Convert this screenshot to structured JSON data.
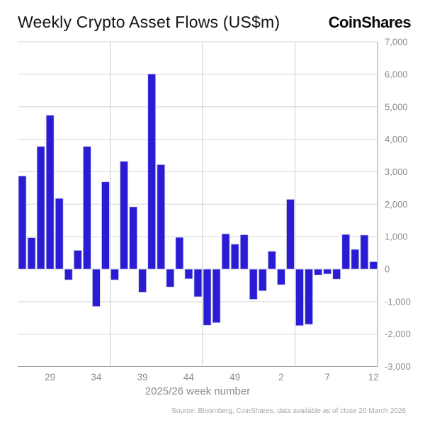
{
  "header": {
    "title": "Weekly Crypto Asset Flows (US$m)",
    "logo": "CoinShares"
  },
  "chart_data": {
    "type": "bar",
    "title": "Weekly Crypto Asset Flows (US$m)",
    "units": "US$m",
    "xlabel": "2025/26 week number",
    "ylabel": "",
    "categories": [
      "26",
      "27",
      "28",
      "29",
      "30",
      "31",
      "32",
      "33",
      "34",
      "35",
      "36",
      "37",
      "38",
      "39",
      "40",
      "41",
      "42",
      "43",
      "44",
      "45",
      "46",
      "47",
      "48",
      "49",
      "50",
      "51",
      "52",
      "1",
      "2",
      "3",
      "4",
      "5",
      "6",
      "7",
      "8",
      "9",
      "10",
      "11",
      "12"
    ],
    "values": [
      2870,
      970,
      3780,
      4740,
      2180,
      -330,
      580,
      3780,
      -1150,
      2690,
      -330,
      3320,
      1920,
      -710,
      6010,
      3220,
      -550,
      980,
      -300,
      -850,
      -1730,
      -1650,
      1090,
      770,
      1060,
      -930,
      -670,
      550,
      -480,
      2150,
      -1740,
      -1700,
      -180,
      -150,
      -310,
      1070,
      610,
      1050,
      230
    ],
    "x_tick_labels": [
      "29",
      "34",
      "39",
      "44",
      "49",
      "2",
      "7",
      "12"
    ],
    "x_tick_indices": [
      3,
      8,
      13,
      18,
      23,
      28,
      33,
      38
    ],
    "y_ticks": [
      -3000,
      -2000,
      -1000,
      0,
      1000,
      2000,
      3000,
      4000,
      5000,
      6000,
      7000
    ],
    "y_tick_labels": [
      "-3,000",
      "-2,000",
      "-1,000",
      "0",
      "1,000",
      "2,000",
      "3,000",
      "4,000",
      "5,000",
      "6,000",
      "7,000"
    ],
    "ylim": [
      -3000,
      7000
    ],
    "grid": true,
    "legend": "none",
    "bar_color": "#2a1bd5",
    "bar_stroke_color": "#d2d2e2",
    "grid_color": "#d6d6d6",
    "axis_color": "#9b9b9b",
    "tick_label_color": "#8c8c8c"
  },
  "footer": {
    "source": "Source: Bloomberg, CoinShares, data available as of close 20 March 2026"
  }
}
